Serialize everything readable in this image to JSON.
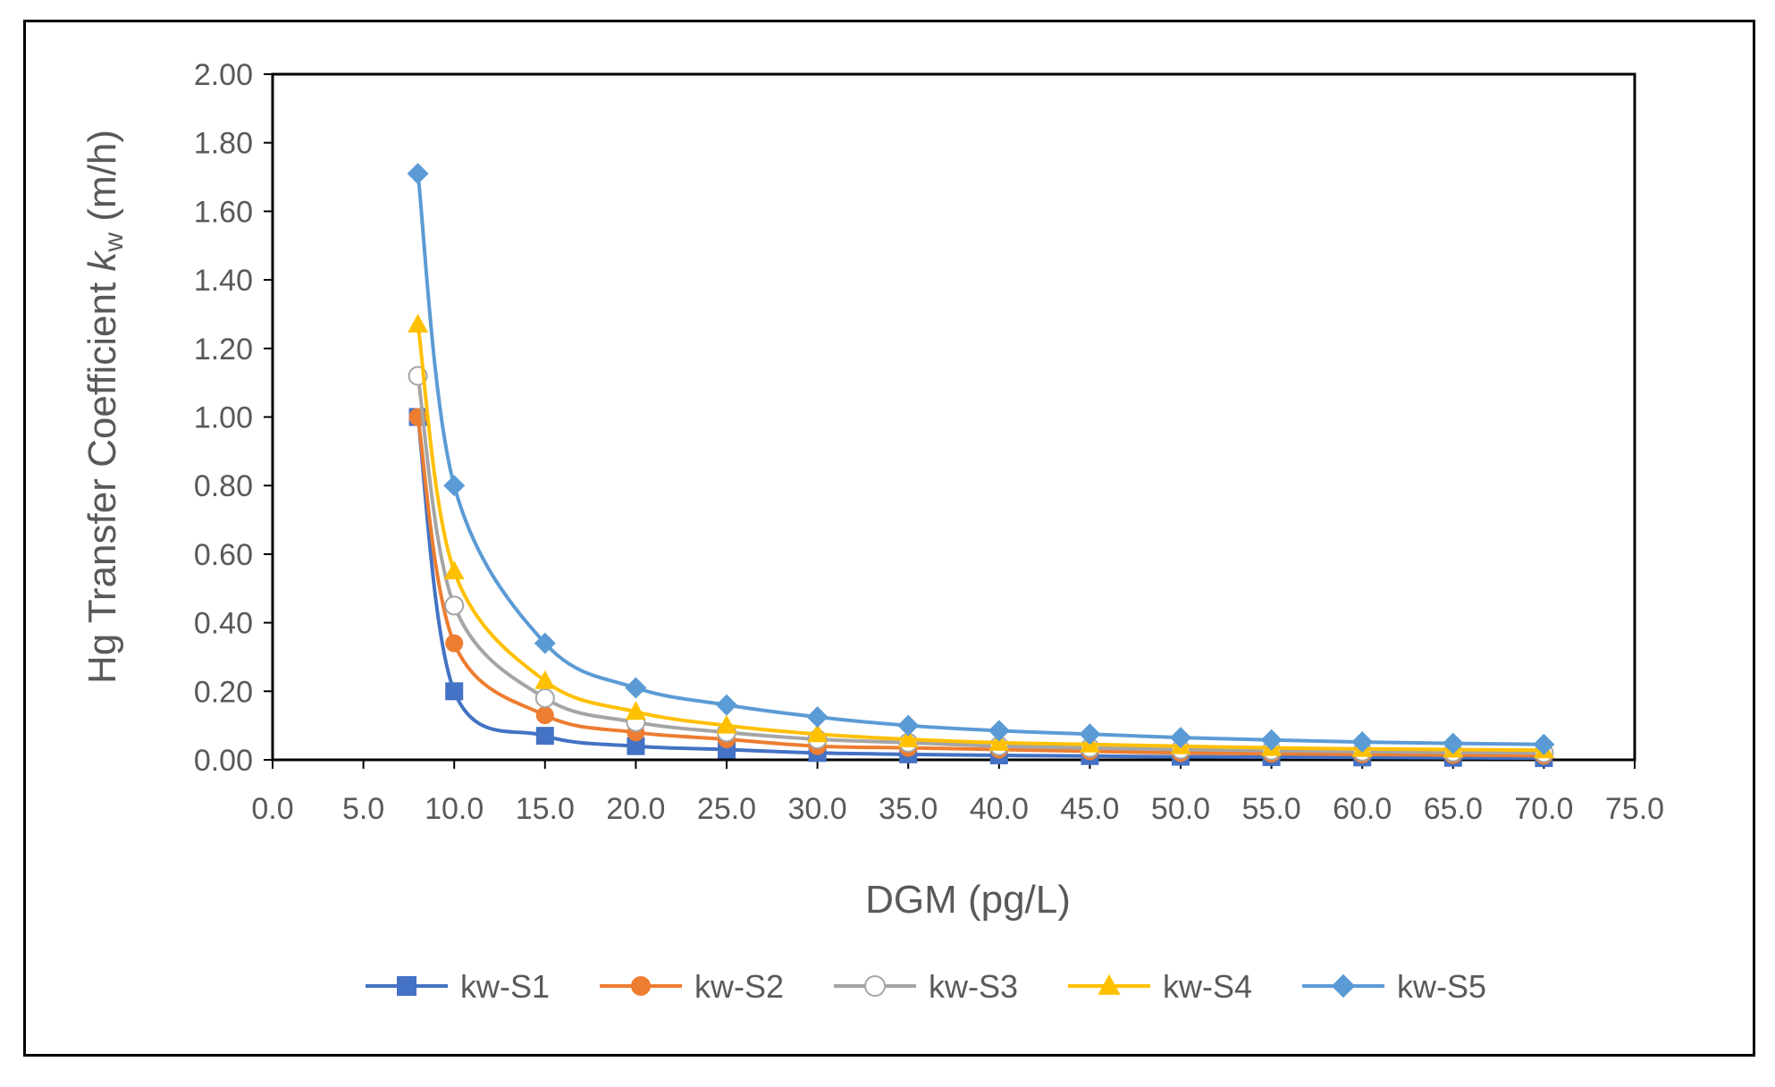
{
  "chart_data": {
    "type": "line",
    "title": "",
    "xlabel": "DGM (pg/L)",
    "ylabel": {
      "prefix": "Hg Transfer Coefficient ",
      "symbol": "k",
      "subscript": "w",
      "suffix": " (m/h)"
    },
    "xlim": [
      0,
      75
    ],
    "ylim": [
      0,
      2
    ],
    "x_ticks": [
      "0.0",
      "5.0",
      "10.0",
      "15.0",
      "20.0",
      "25.0",
      "30.0",
      "35.0",
      "40.0",
      "45.0",
      "50.0",
      "55.0",
      "60.0",
      "65.0",
      "70.0",
      "75.0"
    ],
    "y_ticks": [
      "0.00",
      "0.20",
      "0.40",
      "0.60",
      "0.80",
      "1.00",
      "1.20",
      "1.40",
      "1.60",
      "1.80",
      "2.00"
    ],
    "grid": false,
    "legend_position": "bottom",
    "x": [
      8,
      10,
      15,
      20,
      25,
      30,
      35,
      40,
      45,
      50,
      55,
      60,
      65,
      70
    ],
    "series": [
      {
        "name": "kw-S1",
        "color": "#4472C4",
        "marker": "square",
        "values": [
          1.0,
          0.2,
          0.07,
          0.04,
          0.03,
          0.02,
          0.016,
          0.013,
          0.011,
          0.009,
          0.008,
          0.007,
          0.006,
          0.005
        ]
      },
      {
        "name": "kw-S2",
        "color": "#ED7D31",
        "marker": "circle",
        "values": [
          1.0,
          0.34,
          0.13,
          0.08,
          0.06,
          0.04,
          0.035,
          0.03,
          0.025,
          0.02,
          0.018,
          0.016,
          0.014,
          0.012
        ]
      },
      {
        "name": "kw-S3",
        "color": "#A5A5A5",
        "marker": "open-circle",
        "values": [
          1.12,
          0.45,
          0.18,
          0.11,
          0.08,
          0.06,
          0.05,
          0.04,
          0.035,
          0.03,
          0.027,
          0.024,
          0.022,
          0.02
        ]
      },
      {
        "name": "kw-S4",
        "color": "#FFC000",
        "marker": "triangle",
        "values": [
          1.27,
          0.55,
          0.23,
          0.14,
          0.1,
          0.075,
          0.06,
          0.05,
          0.045,
          0.04,
          0.035,
          0.032,
          0.03,
          0.028
        ]
      },
      {
        "name": "kw-S5",
        "color": "#5B9BD5",
        "marker": "diamond",
        "values": [
          1.71,
          0.8,
          0.34,
          0.21,
          0.16,
          0.125,
          0.1,
          0.085,
          0.075,
          0.065,
          0.058,
          0.052,
          0.048,
          0.045
        ]
      }
    ]
  }
}
